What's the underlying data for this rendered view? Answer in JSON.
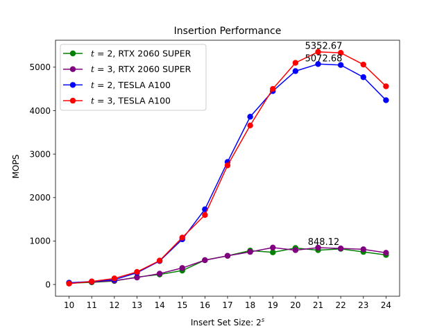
{
  "chart_data": {
    "type": "line",
    "title": "Insertion Performance",
    "xlabel": "Insert Set Size: 2",
    "xlabel_superscript": "s",
    "ylabel": "MOPS",
    "x": [
      10,
      11,
      12,
      13,
      14,
      15,
      16,
      17,
      18,
      19,
      20,
      21,
      22,
      23,
      24
    ],
    "xlim": [
      9.4,
      24.6
    ],
    "ylim": [
      -270,
      5620
    ],
    "yticks": [
      0,
      1000,
      2000,
      3000,
      4000,
      5000
    ],
    "grid": false,
    "legend_position": "top-left",
    "series": [
      {
        "name": "t = 2, RTX 2060 SUPER",
        "legend_var": "t",
        "legend_rest": " = 2, RTX 2060 SUPER",
        "color": "#008000",
        "values": [
          30,
          50,
          80,
          170,
          230,
          320,
          560,
          660,
          780,
          740,
          840,
          790,
          820,
          750,
          680
        ]
      },
      {
        "name": "t = 3, RTX 2060 SUPER",
        "legend_var": "t",
        "legend_rest": " = 3, RTX 2060 SUPER",
        "color": "#800080",
        "values": [
          40,
          60,
          90,
          160,
          250,
          380,
          560,
          660,
          750,
          850,
          790,
          848.12,
          830,
          810,
          730
        ]
      },
      {
        "name": "t = 2, TESLA A100",
        "legend_var": "t",
        "legend_rest": " = 2, TESLA A100",
        "color": "#0000ff",
        "values": [
          40,
          70,
          110,
          270,
          540,
          1040,
          1730,
          2820,
          3860,
          4450,
          4910,
          5072.68,
          5050,
          4770,
          4240
        ]
      },
      {
        "name": "t = 3, TESLA A100",
        "legend_var": "t",
        "legend_rest": " = 3, TESLA A100",
        "color": "#ff0000",
        "values": [
          20,
          70,
          140,
          290,
          550,
          1080,
          1600,
          2740,
          3660,
          4500,
          5100,
          5352.67,
          5330,
          5060,
          4560
        ]
      }
    ],
    "annotations": [
      {
        "text": "5352.67",
        "x": 21,
        "y": 5352.67
      },
      {
        "text": "5072.68",
        "x": 21,
        "y": 5072.68
      },
      {
        "text": "848.12",
        "x": 21,
        "y": 848.12
      }
    ]
  }
}
